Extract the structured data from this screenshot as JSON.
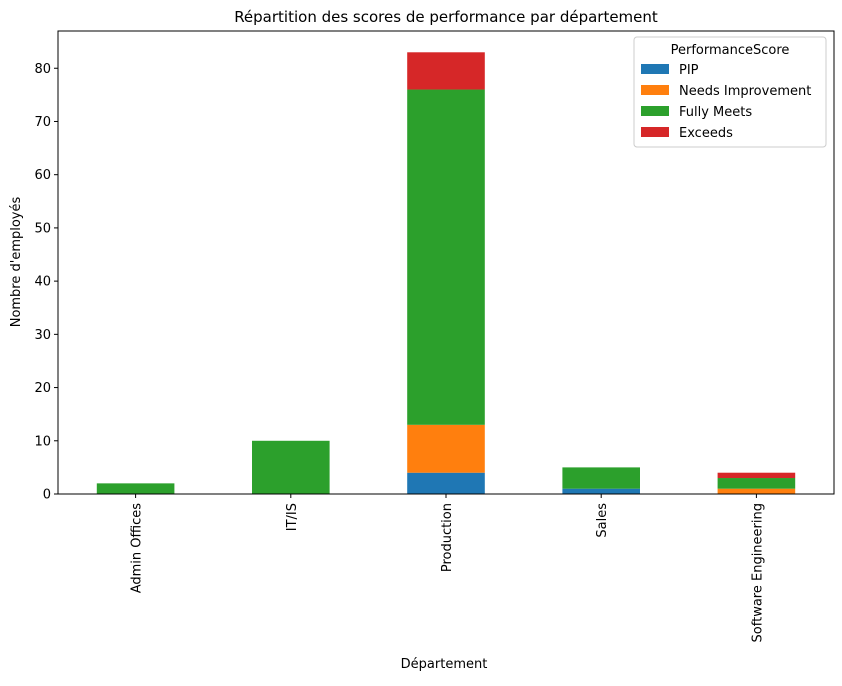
{
  "chart_data": {
    "type": "bar",
    "stacked": true,
    "title": "Répartition des scores de performance par département",
    "xlabel": "Département",
    "ylabel": "Nombre d'employés",
    "categories": [
      "Admin Offices",
      "IT/IS",
      "Production",
      "Sales",
      "Software Engineering"
    ],
    "series": [
      {
        "name": "PIP",
        "color": "#1f77b4",
        "values": [
          0,
          0,
          4,
          1,
          0
        ]
      },
      {
        "name": "Needs Improvement",
        "color": "#ff7f0e",
        "values": [
          0,
          0,
          9,
          0,
          1
        ]
      },
      {
        "name": "Fully Meets",
        "color": "#2ca02c",
        "values": [
          2,
          10,
          63,
          4,
          2
        ]
      },
      {
        "name": "Exceeds",
        "color": "#d62728",
        "values": [
          0,
          0,
          7,
          0,
          1
        ]
      }
    ],
    "ylim": [
      0,
      87
    ],
    "yticks": [
      0,
      10,
      20,
      30,
      40,
      50,
      60,
      70,
      80
    ],
    "grid": false,
    "legend": {
      "title": "PerformanceScore",
      "placement": "top-right"
    }
  }
}
